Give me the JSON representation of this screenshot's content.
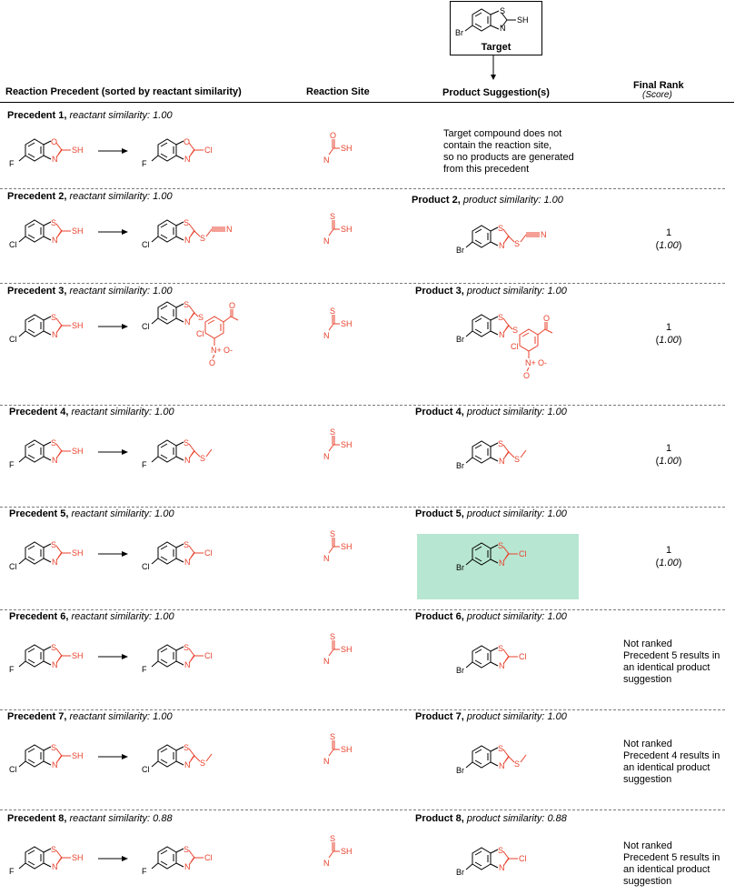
{
  "target": {
    "label": "Target",
    "atoms": {
      "s_ring": "S",
      "n_ring": "N",
      "sh": "SH",
      "halogen": "Br"
    }
  },
  "headers": {
    "precedent": "Reaction Precedent (sorted by reactant similarity)",
    "site": "Reaction Site",
    "product": "Product Suggestion(s)",
    "rank": "Final Rank",
    "rank_sub": "(Score)"
  },
  "rows": [
    {
      "precedent_label": "Precedent 1,",
      "reactant_similarity": "reactant similarity: 1.00",
      "reactant": {
        "halogen": "F",
        "x_ring": "O",
        "n_ring": "N",
        "group": "SH"
      },
      "product": {
        "halogen": "F",
        "x_ring": "O",
        "n_ring": "N",
        "group": "Cl"
      },
      "site": {
        "top": "O",
        "left": "N",
        "right": "SH"
      },
      "note": [
        "Target compound does not",
        "contain the reaction site,",
        "so no products are generated",
        "from this precedent"
      ]
    },
    {
      "precedent_label": "Precedent 2,",
      "reactant_similarity": "reactant similarity: 1.00",
      "reactant": {
        "halogen": "Cl",
        "x_ring": "S",
        "n_ring": "N",
        "group": "SH"
      },
      "product": {
        "halogen": "Cl",
        "x_ring": "S",
        "n_ring": "N",
        "s_link": "S",
        "group": "N"
      },
      "site": {
        "top": "S",
        "left": "N",
        "right": "SH"
      },
      "product_label": "Product 2,",
      "product_similarity": "product similarity: 1.00",
      "suggestion": {
        "halogen": "Br",
        "x_ring": "S",
        "n_ring": "N",
        "s_link": "S",
        "group": "N"
      },
      "rank": "1",
      "score": "1.00"
    },
    {
      "precedent_label": "Precedent 3,",
      "reactant_similarity": "reactant similarity: 1.00",
      "reactant": {
        "halogen": "Cl",
        "x_ring": "S",
        "n_ring": "N",
        "group": "SH"
      },
      "product": {
        "halogen": "Cl",
        "x_ring": "S",
        "n_ring": "N",
        "s_link": "S",
        "cl2": "Cl",
        "o": "O",
        "nitro_n": "N+",
        "nitro_o1": "O",
        "nitro_o2": "O-"
      },
      "site": {
        "top": "S",
        "left": "N",
        "right": "SH"
      },
      "product_label": "Product 3,",
      "product_similarity": "product similarity: 1.00",
      "suggestion": {
        "halogen": "Br",
        "x_ring": "S",
        "n_ring": "N",
        "s_link": "S",
        "cl2": "Cl",
        "o": "O",
        "nitro_n": "N+",
        "nitro_o1": "O",
        "nitro_o2": "O-"
      },
      "rank": "1",
      "score": "1.00"
    },
    {
      "precedent_label": "Precedent 4,",
      "reactant_similarity": "reactant similarity: 1.00",
      "reactant": {
        "halogen": "F",
        "x_ring": "S",
        "n_ring": "N",
        "group": "SH"
      },
      "product": {
        "halogen": "F",
        "x_ring": "S",
        "n_ring": "N",
        "group": "S"
      },
      "site": {
        "top": "S",
        "left": "N",
        "right": "SH"
      },
      "product_label": "Product 4,",
      "product_similarity": "product similarity: 1.00",
      "suggestion": {
        "halogen": "Br",
        "x_ring": "S",
        "n_ring": "N",
        "group": "S"
      },
      "rank": "1",
      "score": "1.00"
    },
    {
      "precedent_label": "Precedent 5,",
      "reactant_similarity": "reactant similarity: 1.00",
      "reactant": {
        "halogen": "Cl",
        "x_ring": "S",
        "n_ring": "N",
        "group": "SH"
      },
      "product": {
        "halogen": "Cl",
        "x_ring": "S",
        "n_ring": "N",
        "group": "Cl"
      },
      "site": {
        "top": "S",
        "left": "N",
        "right": "SH"
      },
      "product_label": "Product 5,",
      "product_similarity": "product similarity: 1.00",
      "suggestion": {
        "halogen": "Br",
        "x_ring": "S",
        "n_ring": "N",
        "group": "Cl"
      },
      "highlight_color": "#b7e6d2",
      "rank": "1",
      "score": "1.00"
    },
    {
      "precedent_label": "Precedent 6,",
      "reactant_similarity": "reactant similarity: 1.00",
      "reactant": {
        "halogen": "F",
        "x_ring": "S",
        "n_ring": "N",
        "group": "SH"
      },
      "product": {
        "halogen": "F",
        "x_ring": "S",
        "n_ring": "N",
        "group": "Cl"
      },
      "site": {
        "top": "S",
        "left": "N",
        "right": "SH"
      },
      "product_label": "Product 6,",
      "product_similarity": "product similarity: 1.00",
      "suggestion": {
        "halogen": "Br",
        "x_ring": "S",
        "n_ring": "N",
        "group": "Cl"
      },
      "note": [
        "Not ranked",
        "Precedent 5 results in",
        "an identical product",
        "suggestion"
      ]
    },
    {
      "precedent_label": "Precedent 7,",
      "reactant_similarity": "reactant similarity: 1.00",
      "reactant": {
        "halogen": "Cl",
        "x_ring": "S",
        "n_ring": "N",
        "group": "SH"
      },
      "product": {
        "halogen": "Cl",
        "x_ring": "S",
        "n_ring": "N",
        "group": "S"
      },
      "site": {
        "top": "S",
        "left": "N",
        "right": "SH"
      },
      "product_label": "Product 7,",
      "product_similarity": "product similarity: 1.00",
      "suggestion": {
        "halogen": "Br",
        "x_ring": "S",
        "n_ring": "N",
        "group": "S"
      },
      "note": [
        "Not ranked",
        "Precedent 4 results in",
        "an identical product",
        "suggestion"
      ]
    },
    {
      "precedent_label": "Precedent 8,",
      "reactant_similarity": "reactant similarity: 0.88",
      "reactant": {
        "halogen": "F",
        "x_ring": "S",
        "n_ring": "N",
        "group": "SH"
      },
      "product": {
        "halogen": "F",
        "x_ring": "S",
        "n_ring": "N",
        "group": "Cl"
      },
      "site": {
        "top": "S",
        "left": "N",
        "right": "SH"
      },
      "product_label": "Product 8,",
      "product_similarity": "product similarity: 0.88",
      "suggestion": {
        "halogen": "Br",
        "x_ring": "S",
        "n_ring": "N",
        "group": "Cl"
      },
      "note": [
        "Not ranked",
        "Precedent 5 results in",
        "an identical product",
        "suggestion"
      ]
    }
  ],
  "colors": {
    "reaction_site": "#e8412c",
    "highlight": "#b7e6d2",
    "separator": "#7a7a7a"
  }
}
